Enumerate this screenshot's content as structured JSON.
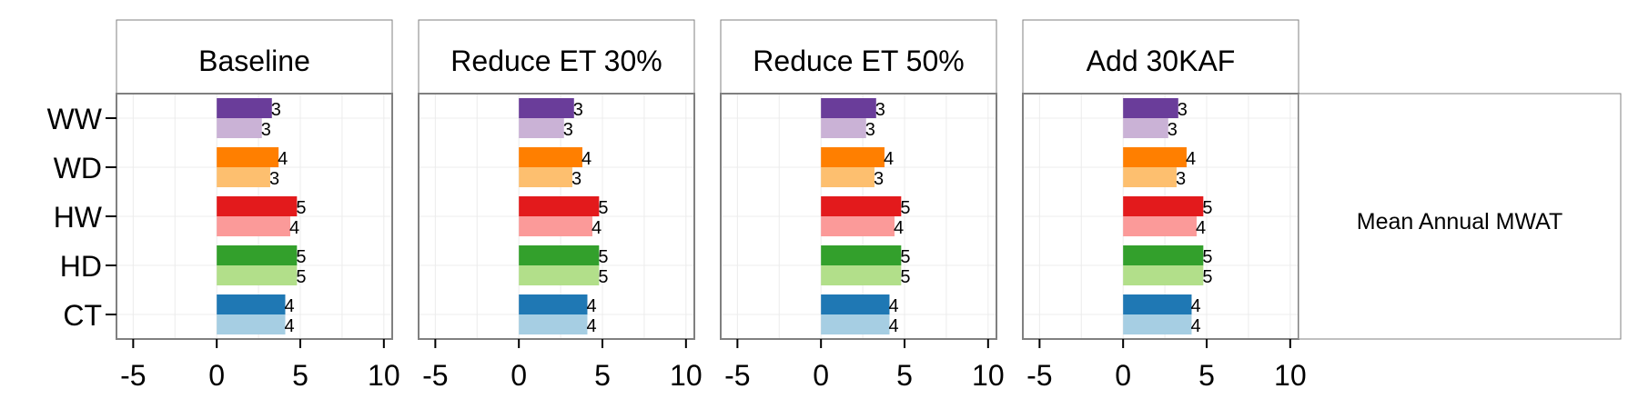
{
  "chart_data": {
    "type": "bar",
    "orientation": "horizontal",
    "categories": [
      "CT",
      "HD",
      "HW",
      "WD",
      "WW"
    ],
    "xlim": [
      -6,
      10.5
    ],
    "x_ticks": [
      "-5",
      "0",
      "5",
      "10"
    ],
    "grid": true,
    "strip_label": "Mean Annual MWAT",
    "panels": [
      {
        "title": "Baseline",
        "series": [
          {
            "values": [
              4.1,
              4.8,
              4.4,
              3.2,
              2.7
            ],
            "labels": [
              "4",
              "5",
              "4",
              "3",
              "3"
            ]
          },
          {
            "values": [
              4.1,
              4.8,
              4.8,
              3.7,
              3.3
            ],
            "labels": [
              "4",
              "5",
              "5",
              "4",
              "3"
            ]
          }
        ]
      },
      {
        "title": "Reduce ET 30%",
        "series": [
          {
            "values": [
              4.1,
              4.8,
              4.4,
              3.2,
              2.7
            ],
            "labels": [
              "4",
              "5",
              "4",
              "3",
              "3"
            ]
          },
          {
            "values": [
              4.1,
              4.8,
              4.8,
              3.8,
              3.3
            ],
            "labels": [
              "4",
              "5",
              "5",
              "4",
              "3"
            ]
          }
        ]
      },
      {
        "title": "Reduce ET 50%",
        "series": [
          {
            "values": [
              4.1,
              4.8,
              4.4,
              3.2,
              2.7
            ],
            "labels": [
              "4",
              "5",
              "4",
              "3",
              "3"
            ]
          },
          {
            "values": [
              4.1,
              4.8,
              4.8,
              3.8,
              3.3
            ],
            "labels": [
              "4",
              "5",
              "5",
              "4",
              "3"
            ]
          }
        ]
      },
      {
        "title": "Add 30KAF",
        "series": [
          {
            "values": [
              4.1,
              4.8,
              4.4,
              3.2,
              2.7
            ],
            "labels": [
              "4",
              "5",
              "4",
              "3",
              "3"
            ]
          },
          {
            "values": [
              4.1,
              4.8,
              4.8,
              3.8,
              3.3
            ],
            "labels": [
              "4",
              "5",
              "5",
              "4",
              "3"
            ]
          }
        ]
      }
    ],
    "colors": {
      "CT": [
        "#A6CEE3",
        "#1F78B4"
      ],
      "HD": [
        "#B2DF8A",
        "#33A02C"
      ],
      "HW": [
        "#FB9A99",
        "#E31A1C"
      ],
      "WD": [
        "#FDBF6F",
        "#FF7F00"
      ],
      "WW": [
        "#CAB2D6",
        "#6A3D9A"
      ]
    }
  }
}
